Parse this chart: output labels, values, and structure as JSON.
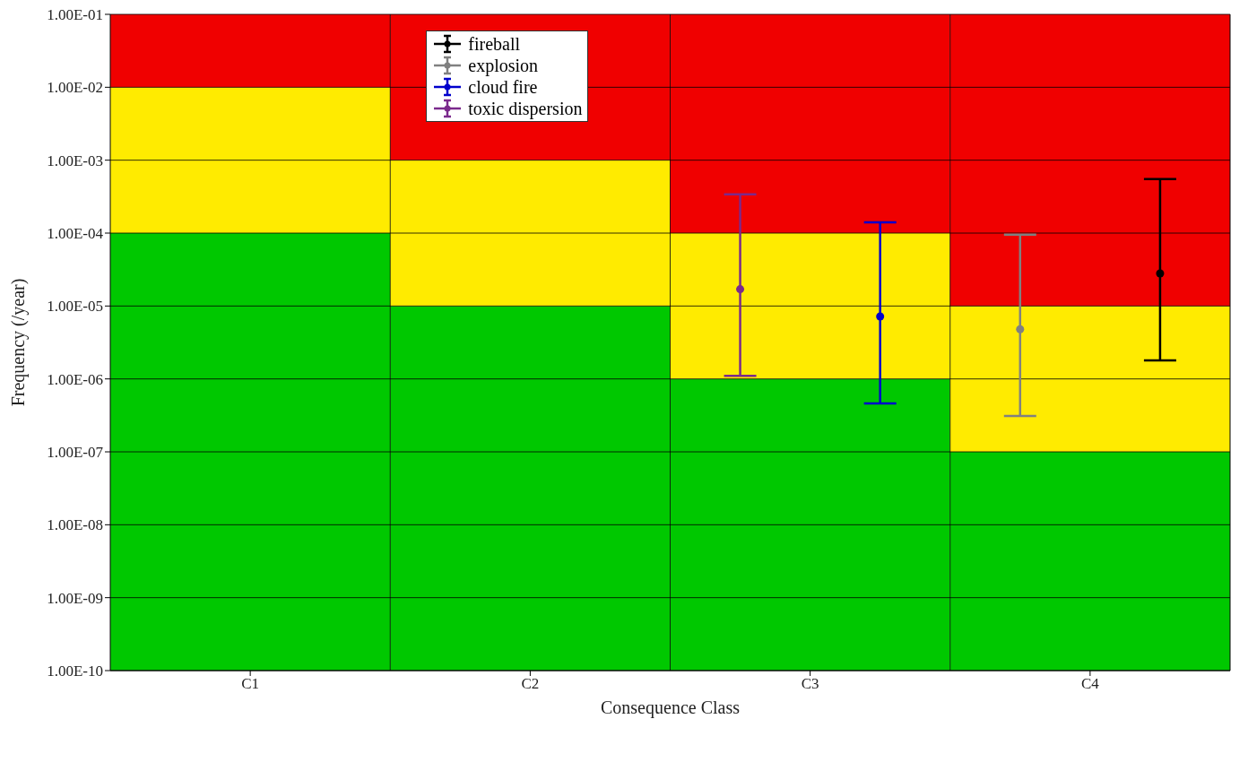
{
  "chart_data": {
    "type": "bar",
    "xlabel": "Consequence Class",
    "ylabel": "Frequency (/year)",
    "categories": [
      "C1",
      "C2",
      "C3",
      "C4"
    ],
    "log": "y",
    "ylim": [
      1e-10,
      0.1
    ],
    "yticks": [
      {
        "value": 1e-10,
        "label": "1.00E-10"
      },
      {
        "value": 1e-09,
        "label": "1.00E-09"
      },
      {
        "value": 1e-08,
        "label": "1.00E-08"
      },
      {
        "value": 1e-07,
        "label": "1.00E-07"
      },
      {
        "value": 1e-06,
        "label": "1.00E-06"
      },
      {
        "value": 1e-05,
        "label": "1.00E-05"
      },
      {
        "value": 0.0001,
        "label": "1.00E-04"
      },
      {
        "value": 0.001,
        "label": "1.00E-03"
      },
      {
        "value": 0.01,
        "label": "1.00E-02"
      },
      {
        "value": 0.1,
        "label": "1.00E-01"
      }
    ],
    "grid": true,
    "legend": "top left",
    "marker": "circle",
    "series": [
      {
        "color": "#00c800",
        "base": [
          1e-10,
          1e-10,
          1e-10,
          1e-10
        ],
        "values": [
          0.0001,
          1e-05,
          1e-06,
          1e-07
        ]
      },
      {
        "color": "#ffeb00",
        "base": [
          0.0001,
          1e-05,
          1e-06,
          1e-07
        ],
        "values": [
          0.0099,
          0.00099,
          9.9e-05,
          9.9e-06
        ]
      },
      {
        "color": "#f00000",
        "base": [
          0.01,
          0.001,
          0.0001,
          1e-05
        ],
        "values": [
          0.09,
          0.099,
          0.0999,
          0.09999
        ]
      },
      {
        "type": "scatter",
        "name": "fireball",
        "color": "#000000",
        "x": [
          "C4"
        ],
        "values": [
          2.8e-05
        ],
        "errors": [
          [
            1.8e-06,
            0.00055
          ]
        ]
      },
      {
        "type": "scatter",
        "name": "explosion",
        "color": "#808080",
        "x": [
          "C4"
        ],
        "values": [
          4.8e-06
        ],
        "errors": [
          [
            3.1e-07,
            9.5e-05
          ]
        ]
      },
      {
        "type": "scatter",
        "name": "cloud fire",
        "color": "#0000cc",
        "x": [
          "C3"
        ],
        "values": [
          7.2e-06
        ],
        "errors": [
          [
            4.6e-07,
            0.00014
          ]
        ]
      },
      {
        "type": "scatter",
        "name": "toxic dispersion",
        "color": "#7b2a8c",
        "x": [
          "C3"
        ],
        "values": [
          1.7e-05
        ],
        "errors": [
          [
            1.1e-06,
            0.00034
          ]
        ]
      }
    ]
  }
}
